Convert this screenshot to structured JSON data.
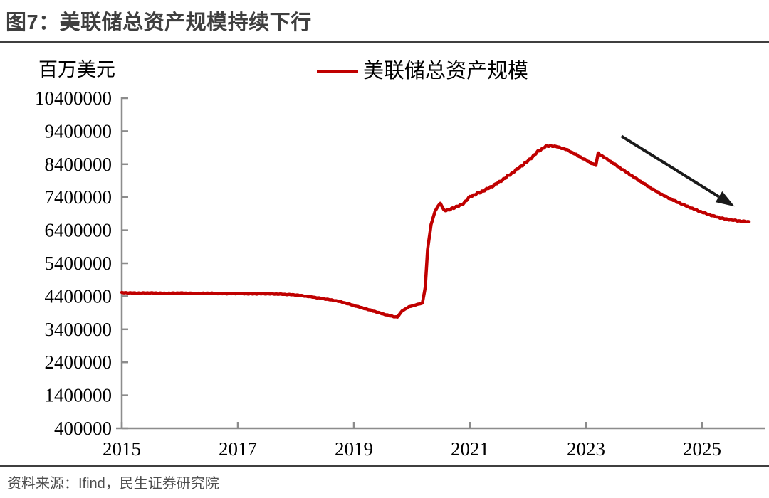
{
  "header": {
    "title": "图7：美联储总资产规模持续下行"
  },
  "footer": {
    "source": "资料来源：Ifind，民生证券研究院"
  },
  "colors": {
    "line": "#C00000",
    "axis": "#8C8C8C",
    "title_bar": "#3F3F3F",
    "source_text": "#4D4D4D",
    "arrow": "#1A1A1A",
    "tick_label": "#000000"
  },
  "chart_data": {
    "type": "line",
    "title": "美联储总资产规模持续下行",
    "unit_label": "百万美元",
    "legend": "美联储总资产规模",
    "xlabel": "",
    "ylabel": "百万美元",
    "xlim": [
      2015,
      2026.1
    ],
    "ylim": [
      400000,
      10400000
    ],
    "yticks": [
      400000,
      1400000,
      2400000,
      3400000,
      4400000,
      5400000,
      6400000,
      7400000,
      8400000,
      9400000,
      10400000
    ],
    "xticks": [
      2015,
      2017,
      2019,
      2021,
      2023,
      2025
    ],
    "grid": false,
    "legend_position": "top-center",
    "series": [
      {
        "name": "美联储总资产规模",
        "points": [
          [
            2015.0,
            4508000
          ],
          [
            2015.25,
            4495000
          ],
          [
            2015.5,
            4500000
          ],
          [
            2015.75,
            4488000
          ],
          [
            2016.0,
            4498000
          ],
          [
            2016.25,
            4485000
          ],
          [
            2016.5,
            4492000
          ],
          [
            2016.75,
            4478000
          ],
          [
            2017.0,
            4482000
          ],
          [
            2017.25,
            4472000
          ],
          [
            2017.5,
            4475000
          ],
          [
            2017.75,
            4462000
          ],
          [
            2018.0,
            4440000
          ],
          [
            2018.25,
            4385000
          ],
          [
            2018.5,
            4320000
          ],
          [
            2018.75,
            4245000
          ],
          [
            2019.0,
            4120000
          ],
          [
            2019.25,
            3995000
          ],
          [
            2019.5,
            3865000
          ],
          [
            2019.67,
            3788000
          ],
          [
            2019.75,
            3768000
          ],
          [
            2019.83,
            3955000
          ],
          [
            2019.95,
            4080000
          ],
          [
            2020.08,
            4145000
          ],
          [
            2020.18,
            4190000
          ],
          [
            2020.23,
            4670000
          ],
          [
            2020.27,
            5810000
          ],
          [
            2020.33,
            6570000
          ],
          [
            2020.4,
            6980000
          ],
          [
            2020.45,
            7130000
          ],
          [
            2020.49,
            7215000
          ],
          [
            2020.55,
            7015000
          ],
          [
            2020.62,
            6995000
          ],
          [
            2020.7,
            7070000
          ],
          [
            2020.8,
            7125000
          ],
          [
            2020.9,
            7230000
          ],
          [
            2021.0,
            7415000
          ],
          [
            2021.17,
            7545000
          ],
          [
            2021.33,
            7680000
          ],
          [
            2021.5,
            7855000
          ],
          [
            2021.67,
            8060000
          ],
          [
            2021.83,
            8270000
          ],
          [
            2022.0,
            8500000
          ],
          [
            2022.17,
            8780000
          ],
          [
            2022.29,
            8925000
          ],
          [
            2022.38,
            8960000
          ],
          [
            2022.5,
            8930000
          ],
          [
            2022.67,
            8840000
          ],
          [
            2022.83,
            8690000
          ],
          [
            2023.0,
            8520000
          ],
          [
            2023.13,
            8400000
          ],
          [
            2023.17,
            8370000
          ],
          [
            2023.21,
            8730000
          ],
          [
            2023.33,
            8590000
          ],
          [
            2023.5,
            8390000
          ],
          [
            2023.67,
            8190000
          ],
          [
            2023.83,
            8000000
          ],
          [
            2024.0,
            7810000
          ],
          [
            2024.17,
            7620000
          ],
          [
            2024.33,
            7460000
          ],
          [
            2024.5,
            7310000
          ],
          [
            2024.67,
            7180000
          ],
          [
            2024.83,
            7060000
          ],
          [
            2025.0,
            6945000
          ],
          [
            2025.17,
            6845000
          ],
          [
            2025.33,
            6765000
          ],
          [
            2025.5,
            6710000
          ],
          [
            2025.67,
            6675000
          ],
          [
            2025.81,
            6655000
          ]
        ]
      }
    ],
    "annotations": [
      {
        "type": "arrow",
        "from": [
          2023.61,
          9250000
        ],
        "to": [
          2025.56,
          7120000
        ]
      }
    ]
  }
}
